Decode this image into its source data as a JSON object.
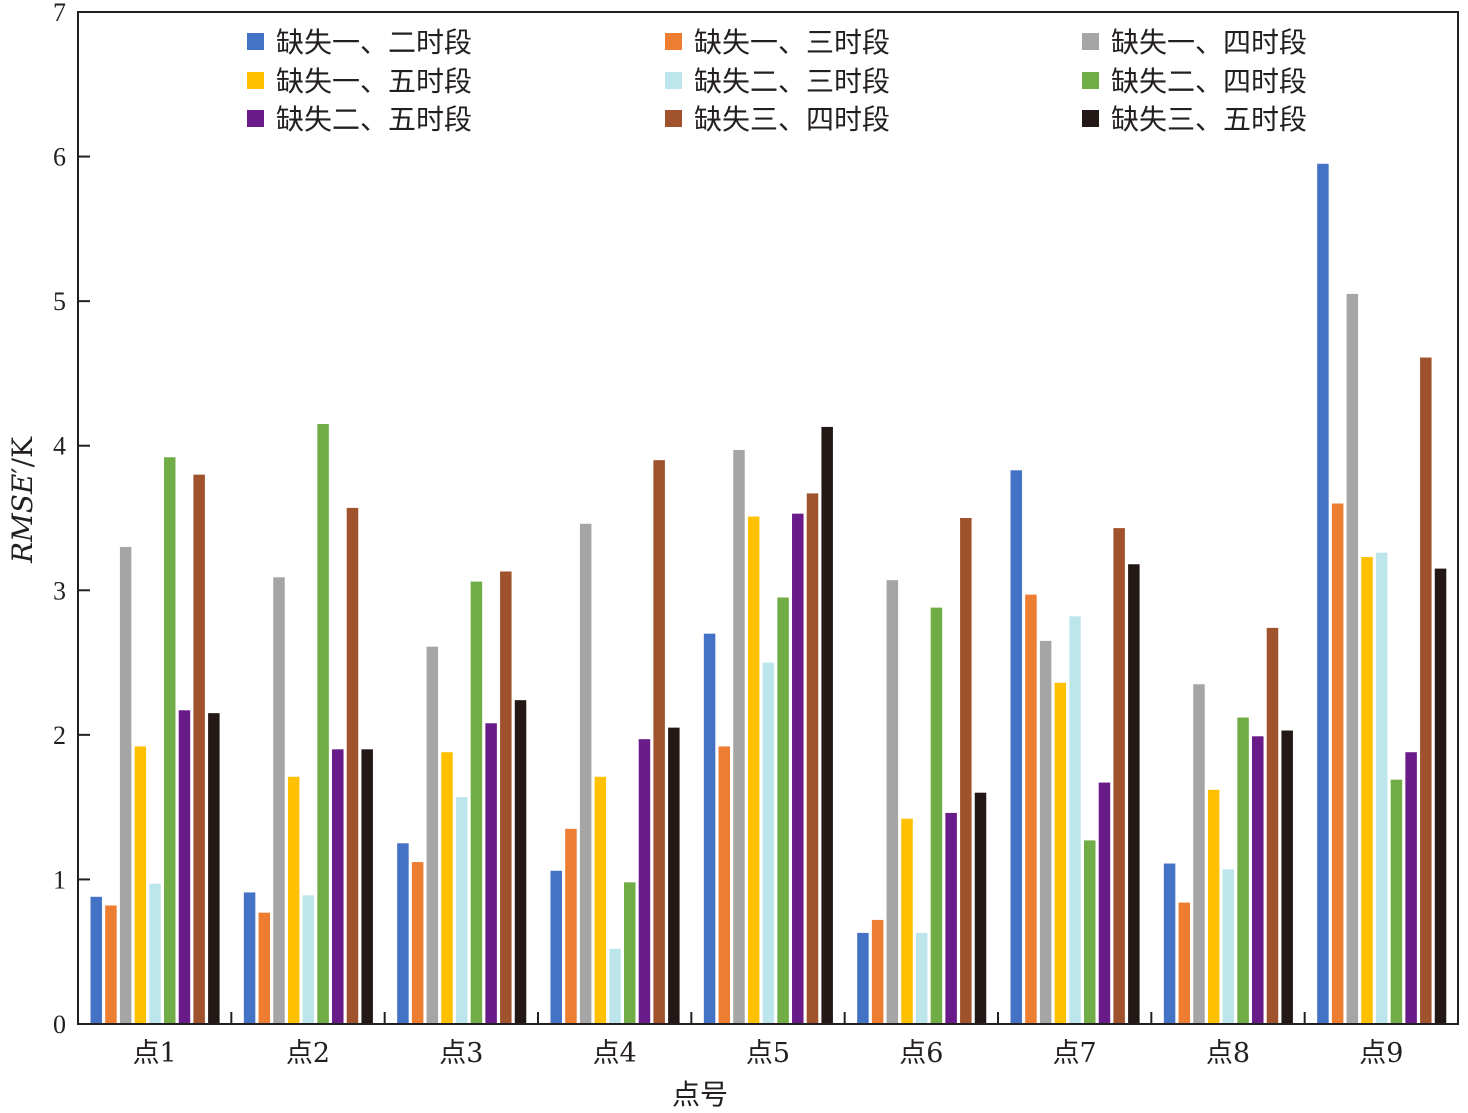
{
  "chart_data": {
    "type": "bar",
    "xlabel": "点号",
    "ylabel_main": "RMSE",
    "ylabel_prime": "′",
    "ylabel_unit": "/K",
    "ylim": [
      0,
      7
    ],
    "yticks": [
      "0",
      "1",
      "2",
      "3",
      "4",
      "5",
      "6",
      "7"
    ],
    "grid": false,
    "legend_position": "top",
    "categories": [
      "点1",
      "点2",
      "点3",
      "点4",
      "点5",
      "点6",
      "点7",
      "点8",
      "点9"
    ],
    "series": [
      {
        "name": "缺失一、二时段",
        "color": "#4472c4",
        "values": [
          0.88,
          0.91,
          1.25,
          1.06,
          2.7,
          0.63,
          3.83,
          1.11,
          5.95
        ]
      },
      {
        "name": "缺失一、三时段",
        "color": "#ed7d31",
        "values": [
          0.82,
          0.77,
          1.12,
          1.35,
          1.92,
          0.72,
          2.97,
          0.84,
          3.6
        ]
      },
      {
        "name": "缺失一、四时段",
        "color": "#a5a5a5",
        "values": [
          3.3,
          3.09,
          2.61,
          3.46,
          3.97,
          3.07,
          2.65,
          2.35,
          5.05
        ]
      },
      {
        "name": "缺失一、五时段",
        "color": "#ffc000",
        "values": [
          1.92,
          1.71,
          1.88,
          1.71,
          3.51,
          1.42,
          2.36,
          1.62,
          3.23
        ]
      },
      {
        "name": "缺失二、三时段",
        "color": "#bde6ec",
        "values": [
          0.97,
          0.89,
          1.57,
          0.52,
          2.5,
          0.63,
          2.82,
          1.07,
          3.26
        ]
      },
      {
        "name": "缺失二、四时段",
        "color": "#70ad47",
        "values": [
          3.92,
          4.15,
          3.06,
          0.98,
          2.95,
          2.88,
          1.27,
          2.12,
          1.69
        ]
      },
      {
        "name": "缺失二、五时段",
        "color": "#6a1b8a",
        "values": [
          2.17,
          1.9,
          2.08,
          1.97,
          3.53,
          1.46,
          1.67,
          1.99,
          1.88
        ]
      },
      {
        "name": "缺失三、四时段",
        "color": "#a0522d",
        "values": [
          3.8,
          3.57,
          3.13,
          3.9,
          3.67,
          3.5,
          3.43,
          2.74,
          4.61
        ]
      },
      {
        "name": "缺失三、五时段",
        "color": "#231815",
        "values": [
          2.15,
          1.9,
          2.24,
          2.05,
          4.13,
          1.6,
          3.18,
          2.03,
          3.15
        ]
      }
    ]
  }
}
